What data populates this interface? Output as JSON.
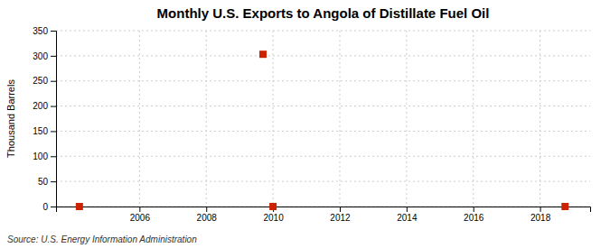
{
  "chart_data": {
    "type": "scatter",
    "title": "Monthly U.S. Exports to Angola of Distillate Fuel Oil",
    "ylabel": "Thousand Barrels",
    "source": "Source: U.S. Energy Information Administration",
    "x": [
      2004.2,
      2009.7,
      2010.0,
      2018.75
    ],
    "values": [
      0,
      303,
      0,
      0
    ],
    "color": "#cc2200",
    "marker": "square",
    "xlim": [
      2003.5,
      2019.5
    ],
    "ylim": [
      0,
      350
    ],
    "xticks": [
      2006,
      2008,
      2010,
      2012,
      2014,
      2016,
      2018
    ],
    "yticks": [
      0,
      50,
      100,
      150,
      200,
      250,
      300,
      350
    ],
    "grid": true
  }
}
